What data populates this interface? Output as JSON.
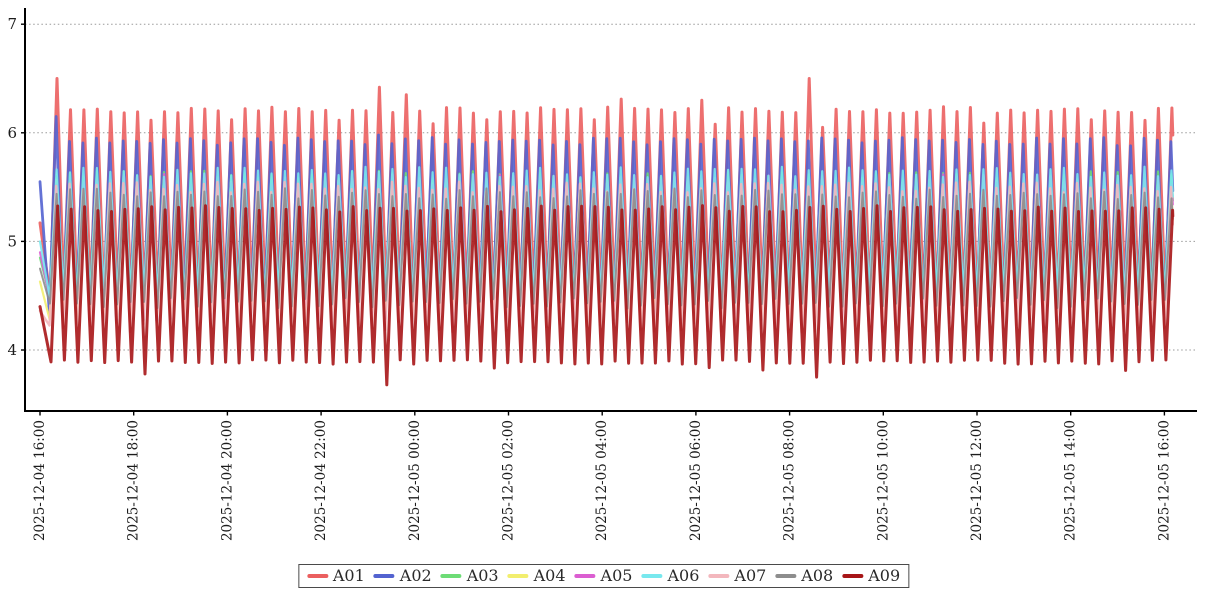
{
  "figure": {
    "background_color": "#ffffff",
    "axis_color": "#000000",
    "gridline_color": "#9a9a9a",
    "tick_text_color": "#1c1c1c"
  },
  "chart_data": {
    "type": "line",
    "title": "",
    "xlabel": "",
    "ylabel": "",
    "x_axis": {
      "start": "2025-12-04 16:00",
      "end": "2025-12-05 16:00",
      "tick_interval_hours": 2,
      "tick_rotation_deg": 90,
      "tick_labels": [
        "2025-12-04 16:00",
        "2025-12-04 18:00",
        "2025-12-04 20:00",
        "2025-12-04 22:00",
        "2025-12-05 00:00",
        "2025-12-05 02:00",
        "2025-12-05 04:00",
        "2025-12-05 06:00",
        "2025-12-05 08:00",
        "2025-12-05 10:00",
        "2025-12-05 12:00",
        "2025-12-05 14:00",
        "2025-12-05 16:00"
      ]
    },
    "y_axis": {
      "ticks": [
        4,
        5,
        6,
        7
      ],
      "range": [
        3.4,
        7.25
      ],
      "grid_style": "dotted"
    },
    "oscillation": {
      "waveform": "triangle",
      "period_hours": 0.2867,
      "first_trough_hour": 0.22,
      "duration_hours": 24.18
    },
    "series": [
      {
        "name": "A01",
        "color": "#eb5f5f",
        "peak": 6.21,
        "trough": 4.52,
        "start_value": 5.17,
        "stroke_width": 3.0,
        "peak_jitter": 0.03,
        "trough_jitter": 0.05,
        "low_peak_chance": 0.13,
        "low_peak_drop": 0.09,
        "phase_offset_hours": 0
      },
      {
        "name": "A02",
        "color": "#5363d0",
        "peak": 5.92,
        "trough": 4.31,
        "start_value": 5.55,
        "stroke_width": 2.8,
        "peak_jitter": 0.04,
        "trough_jitter": 0.04,
        "phase_offset_hours": -0.02
      },
      {
        "name": "A03",
        "color": "#6ddc76",
        "peak": 5.6,
        "trough": 4.5,
        "start_value": 4.85,
        "stroke_width": 2.2,
        "peak_jitter": 0.05,
        "trough_jitter": 0.05,
        "phase_offset_hours": -0.01
      },
      {
        "name": "A04",
        "color": "#f2ee6e",
        "peak": 5.52,
        "trough": 4.33,
        "start_value": 4.63,
        "stroke_width": 2.2,
        "peak_jitter": 0.05,
        "trough_jitter": 0.05,
        "phase_offset_hours": -0.015
      },
      {
        "name": "A05",
        "color": "#db5ed1",
        "peak": 5.57,
        "trough": 4.47,
        "start_value": 4.9,
        "stroke_width": 2.2,
        "peak_jitter": 0.05,
        "trough_jitter": 0.05,
        "phase_offset_hours": -0.005
      },
      {
        "name": "A06",
        "color": "#78e8ee",
        "peak": 5.64,
        "trough": 4.52,
        "start_value": 5.0,
        "stroke_width": 2.2,
        "peak_jitter": 0.05,
        "trough_jitter": 0.05,
        "phase_offset_hours": -0.01
      },
      {
        "name": "A07",
        "color": "#f3b7bd",
        "peak": 5.5,
        "trough": 4.21,
        "start_value": 4.36,
        "stroke_width": 2.4,
        "peak_jitter": 0.05,
        "trough_jitter": 0.05,
        "phase_offset_hours": -0.018
      },
      {
        "name": "A08",
        "color": "#8d8d8d",
        "peak": 5.44,
        "trough": 4.43,
        "start_value": 4.75,
        "stroke_width": 2.0,
        "peak_jitter": 0.05,
        "trough_jitter": 0.05,
        "phase_offset_hours": -0.008
      },
      {
        "name": "A09",
        "color": "#a71517",
        "peak": 5.3,
        "trough": 3.89,
        "start_value": 4.4,
        "stroke_width": 3.0,
        "peak_jitter": 0.03,
        "trough_jitter": 0.02,
        "low_trough_chance": 0.08,
        "low_trough_drop": 0.07,
        "phase_offset_hours": 0.015
      }
    ],
    "anomalies": [
      {
        "series": "A01",
        "hour": 0.36,
        "type": "peak",
        "value": 6.5
      },
      {
        "series": "A02",
        "hour": 0.36,
        "type": "peak",
        "value": 6.15
      },
      {
        "series": "A09",
        "hour": 2.22,
        "type": "trough",
        "value": 3.78
      },
      {
        "series": "A01",
        "hour": 7.24,
        "type": "peak",
        "value": 6.42
      },
      {
        "series": "A02",
        "hour": 7.24,
        "type": "peak",
        "value": 5.98
      },
      {
        "series": "A09",
        "hour": 7.39,
        "type": "trough",
        "value": 3.68
      },
      {
        "series": "A01",
        "hour": 7.82,
        "type": "peak",
        "value": 6.35
      },
      {
        "series": "A01",
        "hour": 12.53,
        "type": "peak",
        "value": 6.31
      },
      {
        "series": "A01",
        "hour": 14.26,
        "type": "peak",
        "value": 6.3
      },
      {
        "series": "A01",
        "hour": 16.42,
        "type": "peak",
        "value": 6.5
      },
      {
        "series": "A09",
        "hour": 16.56,
        "type": "trough",
        "value": 3.75
      },
      {
        "series": "A01",
        "hour": 4.1,
        "type": "peak",
        "value": 6.12
      },
      {
        "series": "A01",
        "hour": 11.9,
        "type": "peak",
        "value": 6.12
      },
      {
        "series": "A01",
        "hour": 16.76,
        "type": "peak",
        "value": 6.05
      },
      {
        "series": "A01",
        "hour": 22.4,
        "type": "peak",
        "value": 6.12
      }
    ],
    "legend": {
      "position": "bottom-center",
      "entries": [
        "A01",
        "A02",
        "A03",
        "A04",
        "A05",
        "A06",
        "A07",
        "A08",
        "A09"
      ]
    }
  }
}
